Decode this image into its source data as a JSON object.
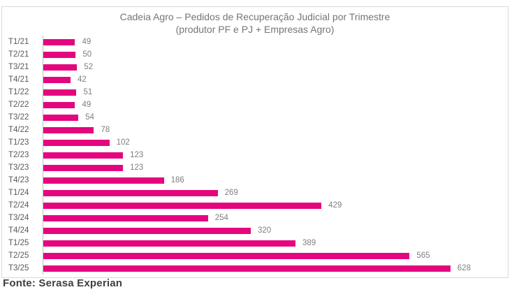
{
  "chart_data": {
    "type": "bar",
    "orientation": "horizontal",
    "title": "Cadeia Agro – Pedidos de Recuperação Judicial por Trimestre",
    "subtitle": "(produtor PF e PJ + Empresas Agro)",
    "categories": [
      "T1/21",
      "T2/21",
      "T3/21",
      "T4/21",
      "T1/22",
      "T2/22",
      "T3/22",
      "T4/22",
      "T1/23",
      "T2/23",
      "T3/23",
      "T4/23",
      "T1/24",
      "T2/24",
      "T3/24",
      "T4/24",
      "T1/25",
      "T2/25",
      "T3/25"
    ],
    "values": [
      49,
      50,
      52,
      42,
      51,
      49,
      54,
      78,
      102,
      123,
      123,
      186,
      269,
      429,
      254,
      320,
      389,
      565,
      628
    ],
    "data_labels": true,
    "legend": "none",
    "grid": false
  },
  "source": {
    "label": "Fonte: Serasa Experian"
  },
  "colors": {
    "bar": "#E4067E",
    "axis": "#BFBFBF",
    "chart_border": "#D9D9D9",
    "title_text": "#757575",
    "category_text": "#595959",
    "value_text": "#7F7F7F",
    "source_text": "#3F3F3F"
  }
}
